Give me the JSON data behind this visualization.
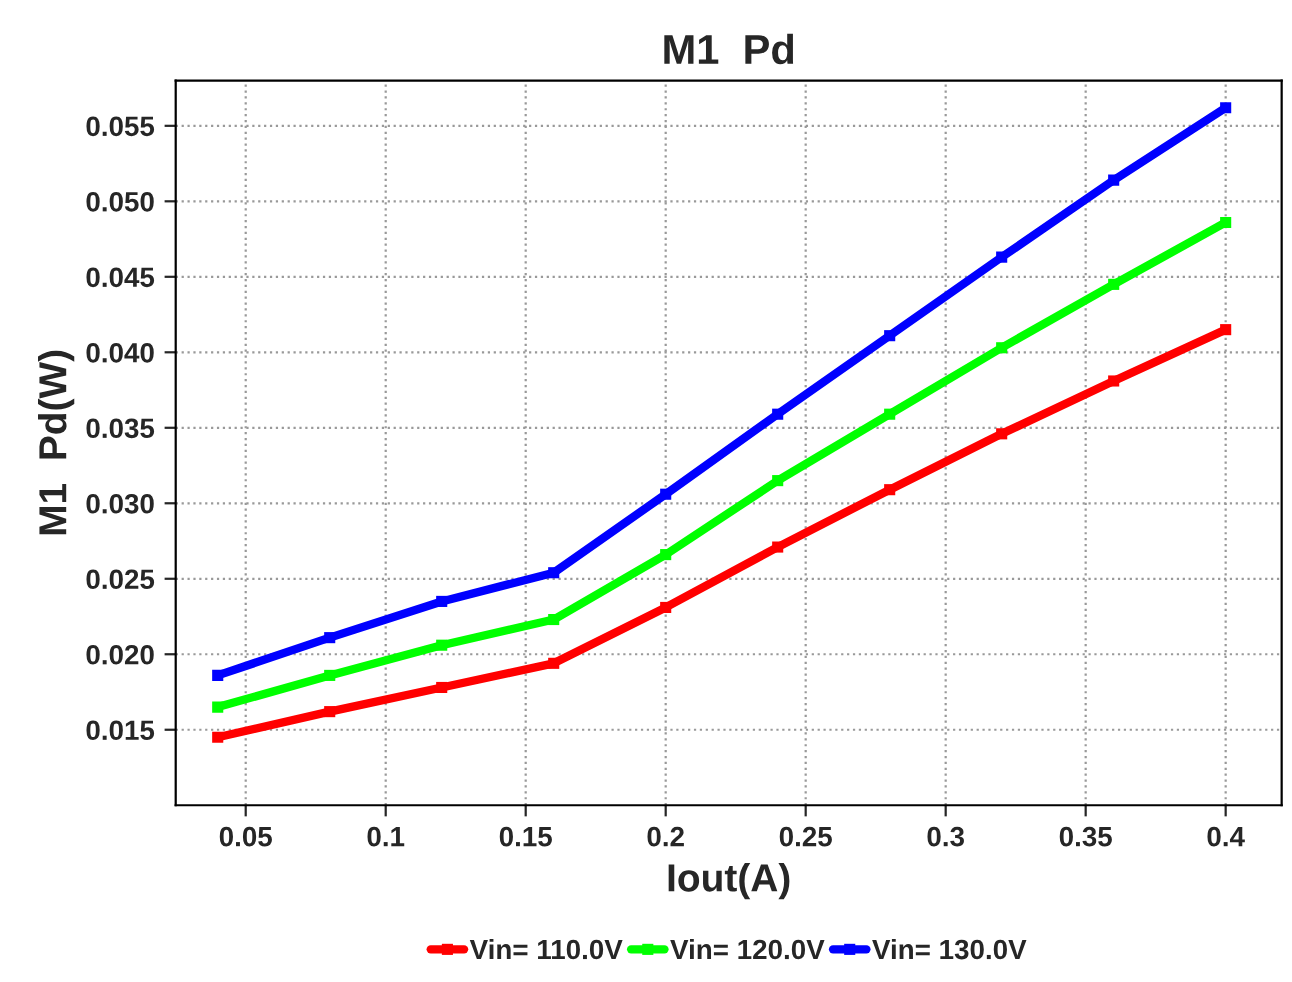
{
  "chart_data": {
    "type": "line",
    "title": "M1  Pd",
    "xlabel": "Iout(A)",
    "ylabel": "M1  Pd(W)",
    "x": [
      0.04,
      0.08,
      0.12,
      0.16,
      0.2,
      0.24,
      0.28,
      0.32,
      0.36,
      0.4
    ],
    "series": [
      {
        "name": "Vin= 110.0V",
        "color": "#ff0000",
        "values": [
          0.0145,
          0.0162,
          0.0178,
          0.0194,
          0.0231,
          0.0271,
          0.0309,
          0.0346,
          0.0381,
          0.0415
        ]
      },
      {
        "name": "Vin= 120.0V",
        "color": "#00ff00",
        "values": [
          0.0165,
          0.0186,
          0.0206,
          0.0223,
          0.0266,
          0.0315,
          0.0359,
          0.0403,
          0.0445,
          0.0486
        ]
      },
      {
        "name": "Vin= 130.0V",
        "color": "#0000ff",
        "values": [
          0.0186,
          0.0211,
          0.0235,
          0.0254,
          0.0306,
          0.0359,
          0.0411,
          0.0463,
          0.0514,
          0.0562
        ]
      }
    ],
    "xlim": [
      0.025,
      0.42
    ],
    "xticks": [
      0.05,
      0.1,
      0.15,
      0.2,
      0.25,
      0.3,
      0.35,
      0.4
    ],
    "ylim": [
      0.01,
      0.058
    ],
    "yticks": [
      0.015,
      {
        "value": 0.02,
        "label": "0.020"
      },
      0.025,
      {
        "value": 0.03,
        "label": "0.030"
      },
      0.035,
      {
        "value": 0.04,
        "label": "0.040"
      },
      0.045,
      {
        "value": 0.05,
        "label": "0.050"
      },
      0.055
    ],
    "grid": true,
    "legend": "bottom",
    "marker": "square",
    "line_style": "solid"
  }
}
